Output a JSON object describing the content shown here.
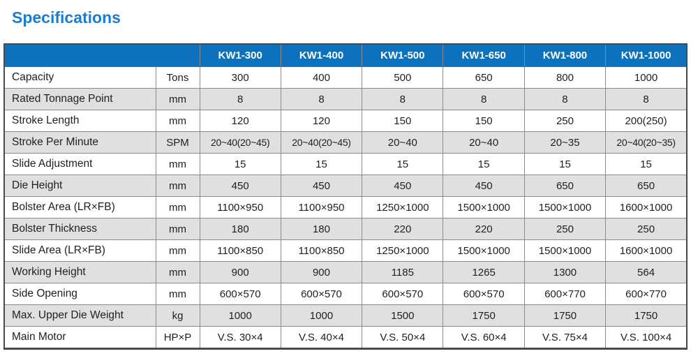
{
  "title": "Specifications",
  "colors": {
    "title_blue": "#1b7cd0",
    "header_blue": "#0d72be",
    "header_text": "#ffffff",
    "row_alt_gray": "#e0e0e0",
    "grid_line": "#8a8a8a",
    "text": "#1f1f1f"
  },
  "table": {
    "corner_label": "",
    "columns": [
      "KW1-300",
      "KW1-400",
      "KW1-500",
      "KW1-650",
      "KW1-800",
      "KW1-1000"
    ],
    "rows": [
      {
        "label": "Capacity",
        "unit": "Tons",
        "values": [
          "300",
          "400",
          "500",
          "650",
          "800",
          "1000"
        ]
      },
      {
        "label": "Rated Tonnage Point",
        "unit": "mm",
        "values": [
          "8",
          "8",
          "8",
          "8",
          "8",
          "8"
        ]
      },
      {
        "label": "Stroke Length",
        "unit": "mm",
        "values": [
          "120",
          "120",
          "150",
          "150",
          "250",
          "200(250)"
        ]
      },
      {
        "label": "Stroke Per Minute",
        "unit": "SPM",
        "values": [
          "20~40(20~45)",
          "20~40(20~45)",
          "20~40",
          "20~40",
          "20~35",
          "20~40(20~35)"
        ]
      },
      {
        "label": "Slide Adjustment",
        "unit": "mm",
        "values": [
          "15",
          "15",
          "15",
          "15",
          "15",
          "15"
        ]
      },
      {
        "label": "Die Height",
        "unit": "mm",
        "values": [
          "450",
          "450",
          "450",
          "450",
          "650",
          "650"
        ]
      },
      {
        "label": "Bolster Area (LR×FB)",
        "unit": "mm",
        "values": [
          "1100×950",
          "1100×950",
          "1250×1000",
          "1500×1000",
          "1500×1000",
          "1600×1000"
        ]
      },
      {
        "label": "Bolster Thickness",
        "unit": "mm",
        "values": [
          "180",
          "180",
          "220",
          "220",
          "250",
          "250"
        ]
      },
      {
        "label": "Slide Area (LR×FB)",
        "unit": "mm",
        "values": [
          "1100×850",
          "1100×850",
          "1250×1000",
          "1500×1000",
          "1500×1000",
          "1600×1000"
        ]
      },
      {
        "label": "Working Height",
        "unit": "mm",
        "values": [
          "900",
          "900",
          "1185",
          "1265",
          "1300",
          "564"
        ]
      },
      {
        "label": "Side Opening",
        "unit": "mm",
        "values": [
          "600×570",
          "600×570",
          "600×570",
          "600×570",
          "600×770",
          "600×770"
        ]
      },
      {
        "label": "Max. Upper Die Weight",
        "unit": "kg",
        "values": [
          "1000",
          "1000",
          "1500",
          "1750",
          "1750",
          "1750"
        ]
      },
      {
        "label": "Main Motor",
        "unit": "HP×P",
        "values": [
          "V.S. 30×4",
          "V.S. 40×4",
          "V.S. 50×4",
          "V.S. 60×4",
          "V.S. 75×4",
          "V.S. 100×4"
        ]
      }
    ]
  }
}
